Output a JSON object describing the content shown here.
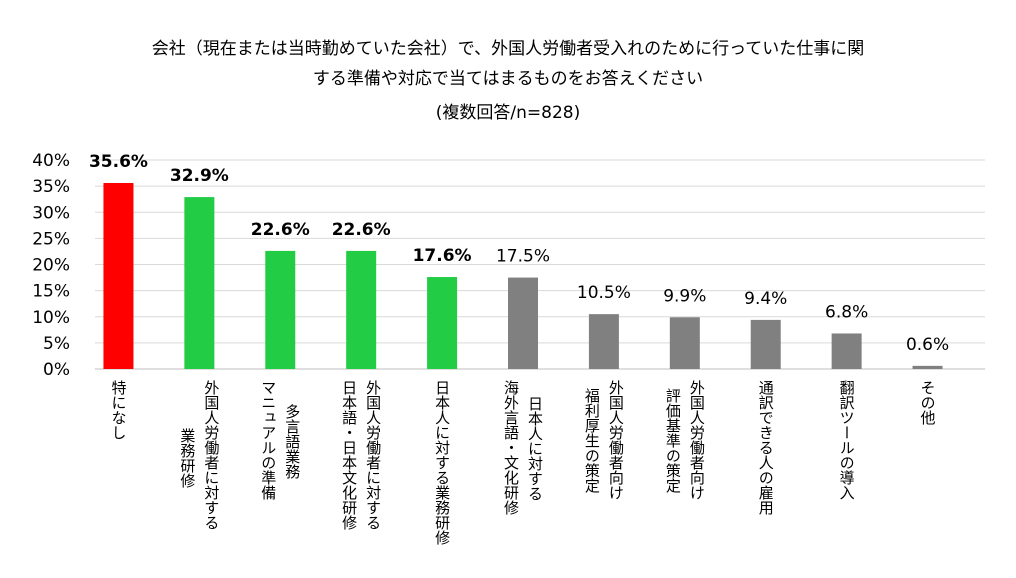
{
  "chart_data": {
    "type": "bar",
    "title_lines": [
      "会社（現在または当時勤めていた会社）で、外国人労働者受入れのために行っていた仕事に関",
      "する準備や対応で当てはまるものをお答えください",
      "(複数回答/n=828)"
    ],
    "categories": [
      [
        "特になし"
      ],
      [
        "外国人労働者に対する",
        "業務研修"
      ],
      [
        "多言語業務",
        "マニュアルの準備"
      ],
      [
        "外国人労働者に対する",
        "日本語・日本文化研修"
      ],
      [
        "日本人に対する業務研修"
      ],
      [
        "日本人に対する",
        "海外言語・文化研修"
      ],
      [
        "外国人労働者向け",
        "福利厚生の策定"
      ],
      [
        "外国人労働者向け",
        "評価基準の策定"
      ],
      [
        "通訳できる人の雇用"
      ],
      [
        "翻訳ツールの導入"
      ],
      [
        "その他"
      ]
    ],
    "values": [
      35.6,
      32.9,
      22.6,
      22.6,
      17.6,
      17.5,
      10.5,
      9.9,
      9.4,
      6.8,
      0.6
    ],
    "data_labels": [
      "35.6%",
      "32.9%",
      "22.6%",
      "22.6%",
      "17.6%",
      "17.5%",
      "10.5%",
      "9.9%",
      "9.4%",
      "6.8%",
      "0.6%"
    ],
    "bar_colors": [
      "#FF0000",
      "#22CC44",
      "#22CC44",
      "#22CC44",
      "#22CC44",
      "#808080",
      "#808080",
      "#808080",
      "#808080",
      "#808080",
      "#808080"
    ],
    "bold_labels": [
      true,
      true,
      true,
      true,
      true,
      false,
      false,
      false,
      false,
      false,
      false
    ],
    "y_ticks": [
      "0%",
      "5%",
      "10%",
      "15%",
      "20%",
      "25%",
      "30%",
      "35%",
      "40%"
    ],
    "ylim": [
      0,
      40
    ],
    "grid": true,
    "xlabel": "",
    "ylabel": ""
  }
}
